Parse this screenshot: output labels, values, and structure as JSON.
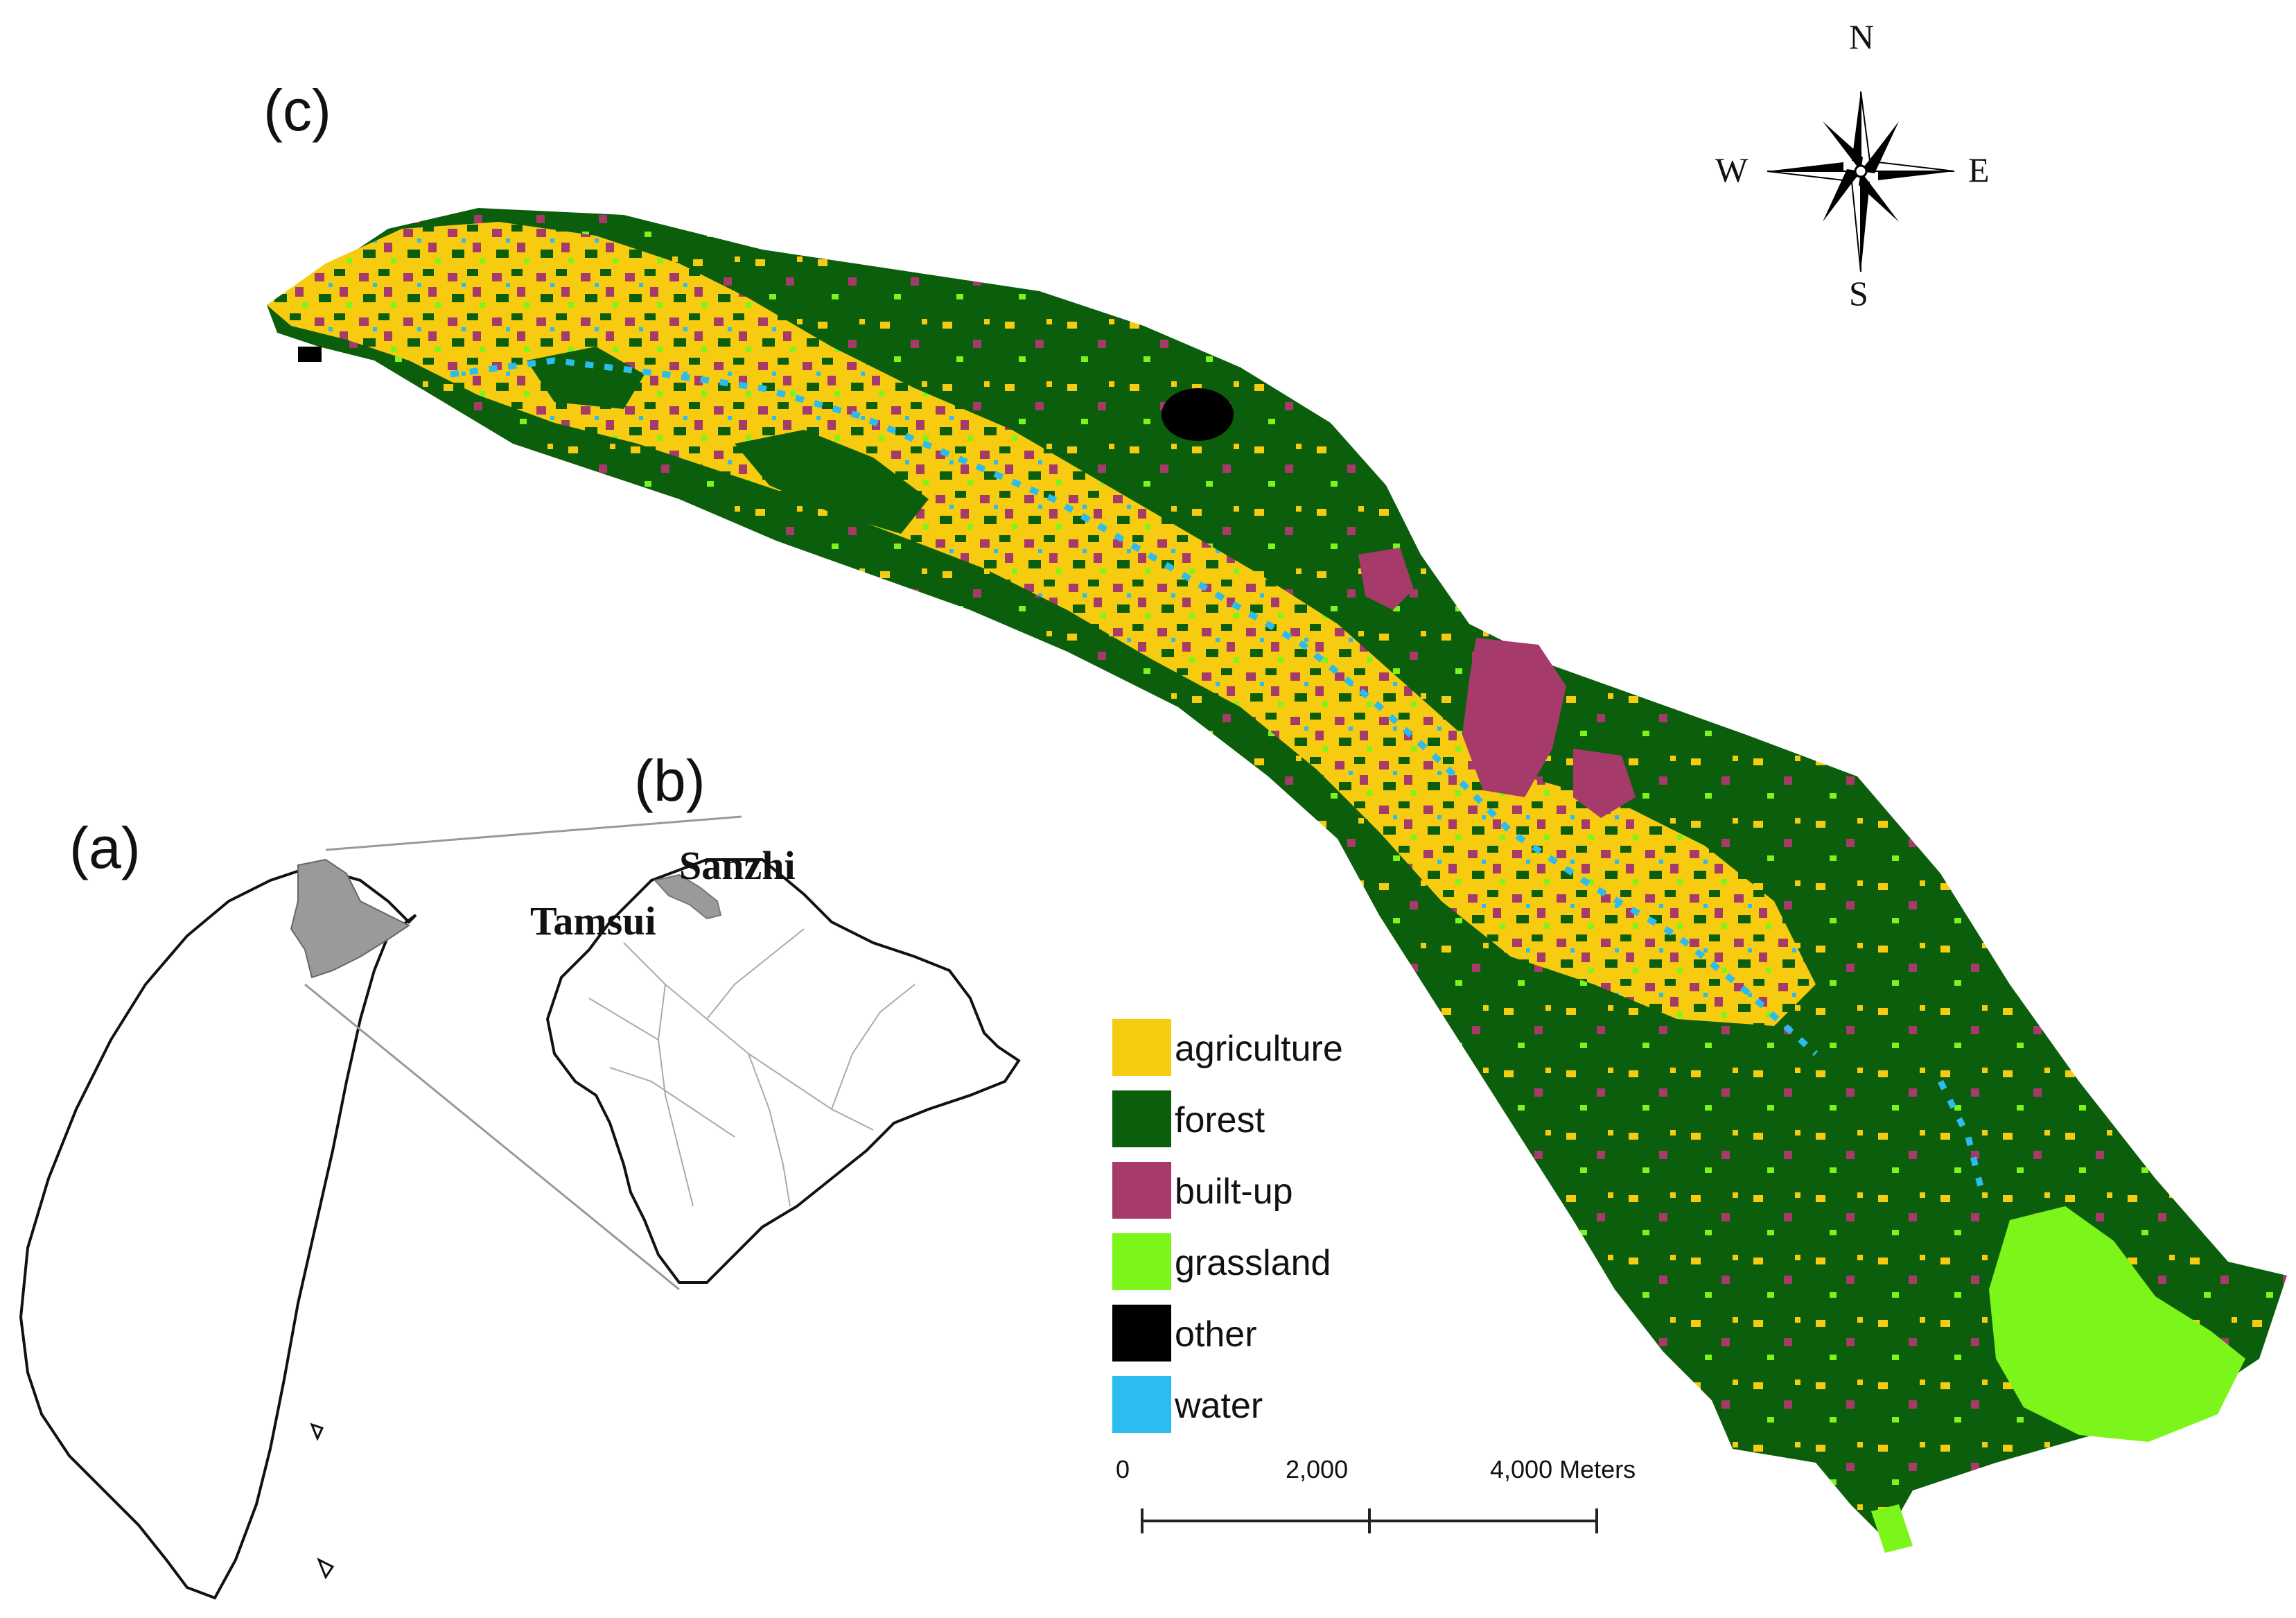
{
  "panels": {
    "a": "(a)",
    "b": "(b)",
    "c": "(c)"
  },
  "places": {
    "tamsui": "Tamsui",
    "sanzhi": "Sanzhi"
  },
  "compass": {
    "n": "N",
    "s": "S",
    "e": "E",
    "w": "W"
  },
  "legend": [
    {
      "label": "agriculture",
      "color": "#f7cb0f"
    },
    {
      "label": "forest",
      "color": "#0b5e0b"
    },
    {
      "label": "built-up",
      "color": "#a63a6a"
    },
    {
      "label": "grassland",
      "color": "#7cf51a"
    },
    {
      "label": "other",
      "color": "#000000"
    },
    {
      "label": "water",
      "color": "#2bbcf0"
    }
  ],
  "scalebar": {
    "t0": "0",
    "t1": "2,000",
    "t2": "4,000 Meters"
  }
}
